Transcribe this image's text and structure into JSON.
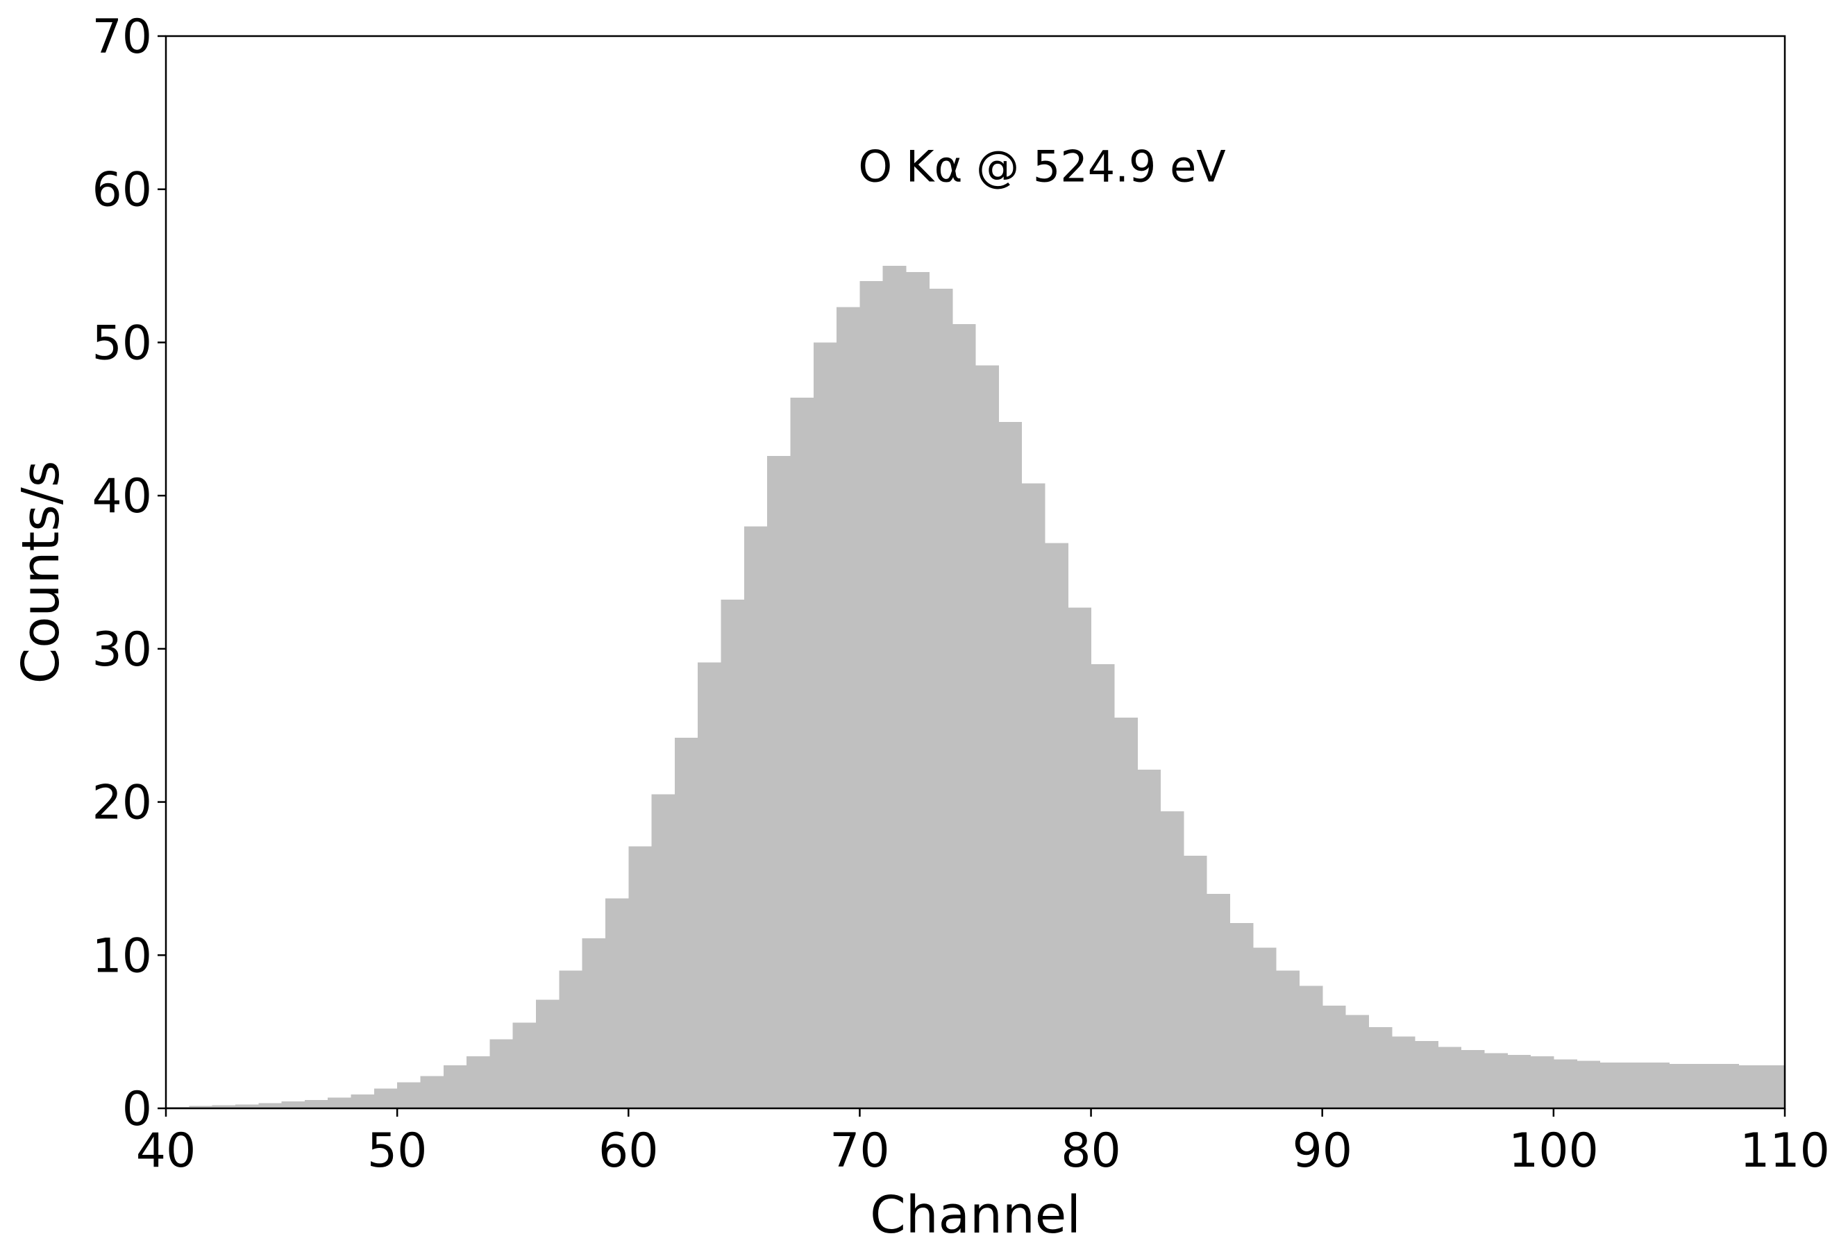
{
  "chart_data": {
    "type": "bar",
    "title": "",
    "xlabel": "Channel",
    "ylabel": "Counts/s",
    "xlim": [
      40,
      110
    ],
    "ylim": [
      0,
      70
    ],
    "xticks": [
      40,
      50,
      60,
      70,
      80,
      90,
      100,
      110
    ],
    "yticks": [
      0,
      10,
      20,
      30,
      40,
      50,
      60,
      70
    ],
    "grid": false,
    "bar_color": "#c0c0c0",
    "annotation": {
      "text": "O Kα @ 524.9 eV",
      "x": 70,
      "y": 60.5
    },
    "bins": [
      40,
      41,
      42,
      43,
      44,
      45,
      46,
      47,
      48,
      49,
      50,
      51,
      52,
      53,
      54,
      55,
      56,
      57,
      58,
      59,
      60,
      61,
      62,
      63,
      64,
      65,
      66,
      67,
      68,
      69,
      70,
      71,
      72,
      73,
      74,
      75,
      76,
      77,
      78,
      79,
      80,
      81,
      82,
      83,
      84,
      85,
      86,
      87,
      88,
      89,
      90,
      91,
      92,
      93,
      94,
      95,
      96,
      97,
      98,
      99,
      100,
      101,
      102,
      103,
      104,
      105,
      106,
      107,
      108,
      109
    ],
    "values": [
      0.1,
      0.15,
      0.2,
      0.25,
      0.35,
      0.45,
      0.55,
      0.7,
      0.9,
      1.3,
      1.7,
      2.1,
      2.8,
      3.4,
      4.5,
      5.6,
      7.1,
      9.0,
      11.1,
      13.7,
      17.1,
      20.5,
      24.2,
      29.1,
      33.2,
      38.0,
      42.6,
      46.4,
      50.0,
      52.3,
      54.0,
      55.0,
      54.6,
      53.5,
      51.2,
      48.5,
      44.8,
      40.8,
      36.9,
      32.7,
      29.0,
      25.5,
      22.1,
      19.4,
      16.5,
      14.0,
      12.1,
      10.5,
      9.0,
      8.0,
      6.7,
      6.1,
      5.3,
      4.7,
      4.4,
      4.0,
      3.8,
      3.6,
      3.5,
      3.4,
      3.2,
      3.1,
      3.0,
      3.0,
      3.0,
      2.9,
      2.9,
      2.9,
      2.8,
      2.8
    ]
  }
}
